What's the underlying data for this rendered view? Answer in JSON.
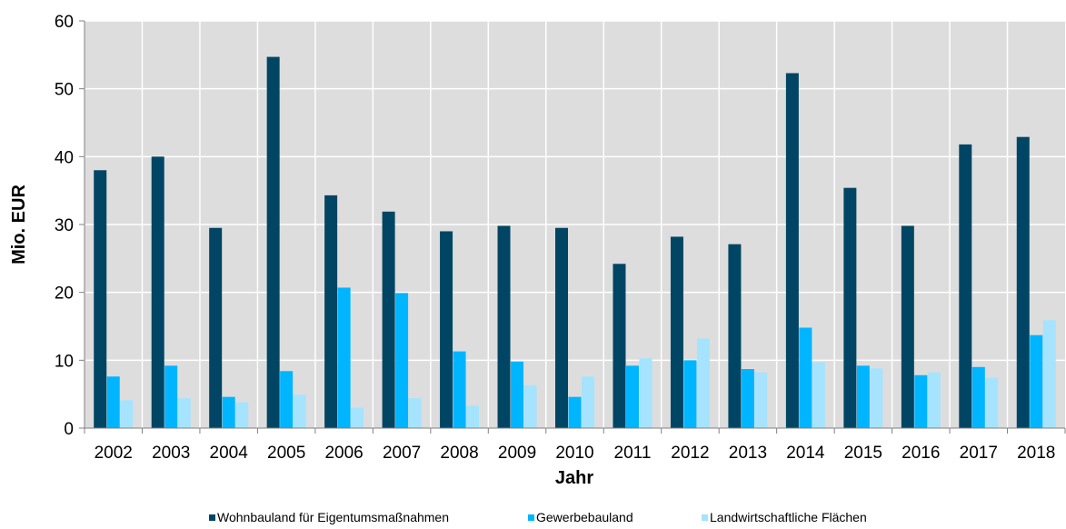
{
  "chart_data": {
    "type": "bar",
    "title": "",
    "xlabel": "Jahr",
    "ylabel": "Mio. EUR",
    "ylim": [
      0,
      60
    ],
    "yticks": [
      0,
      10,
      20,
      30,
      40,
      50,
      60
    ],
    "grid": true,
    "legend_position": "bottom",
    "categories": [
      "2002",
      "2003",
      "2004",
      "2005",
      "2006",
      "2007",
      "2008",
      "2009",
      "2010",
      "2011",
      "2012",
      "2013",
      "2014",
      "2015",
      "2016",
      "2017",
      "2018"
    ],
    "series": [
      {
        "name": "Wohnbauland für Eigentumsmaßnahmen",
        "color": "#004563",
        "values": [
          38.0,
          40.0,
          29.5,
          54.7,
          34.3,
          31.9,
          29.0,
          29.8,
          29.5,
          24.2,
          28.2,
          27.1,
          52.3,
          35.4,
          29.8,
          41.8,
          42.9
        ]
      },
      {
        "name": "Gewerbebauland",
        "color": "#00B5FF",
        "values": [
          7.6,
          9.2,
          4.6,
          8.4,
          20.7,
          19.9,
          11.3,
          9.8,
          4.6,
          9.2,
          10.0,
          8.7,
          14.8,
          9.2,
          7.8,
          9.0,
          13.7
        ]
      },
      {
        "name": "Landwirtschaftliche Flächen",
        "color": "#A6E3FF",
        "values": [
          4.1,
          4.4,
          3.8,
          4.9,
          3.0,
          4.4,
          3.3,
          6.3,
          7.6,
          10.3,
          13.2,
          8.2,
          9.7,
          8.8,
          8.2,
          7.4,
          15.9
        ]
      }
    ]
  }
}
